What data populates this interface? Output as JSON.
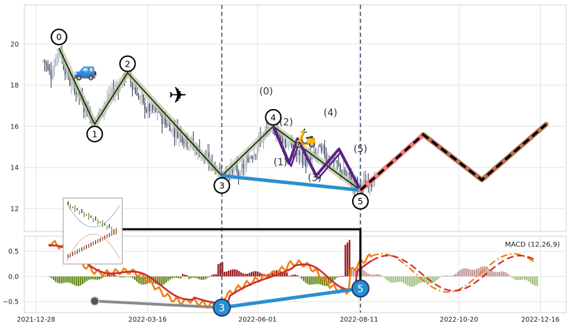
{
  "chart_data": [
    {
      "type": "candlestick",
      "panel": "price",
      "ylim": [
        10.9,
        21.9
      ],
      "yticks": [
        "12",
        "14",
        "16",
        "18",
        "20"
      ],
      "grid": true,
      "price_path": [
        [
          "2022-01-02",
          19.2
        ],
        [
          "2022-01-08",
          18.6
        ],
        [
          "2022-01-13",
          19.8
        ],
        [
          "2022-01-19",
          18.4
        ],
        [
          "2022-01-26",
          17.6
        ],
        [
          "2022-02-02",
          16.8
        ],
        [
          "2022-02-07",
          16.1
        ],
        [
          "2022-02-12",
          16.9
        ],
        [
          "2022-02-20",
          17.7
        ],
        [
          "2022-02-27",
          18.3
        ],
        [
          "2022-03-02",
          18.6
        ],
        [
          "2022-03-07",
          17.8
        ],
        [
          "2022-03-14",
          16.9
        ],
        [
          "2022-03-22",
          16.7
        ],
        [
          "2022-03-30",
          16.1
        ],
        [
          "2022-04-07",
          15.7
        ],
        [
          "2022-04-15",
          15.2
        ],
        [
          "2022-04-22",
          14.7
        ],
        [
          "2022-05-01",
          14.1
        ],
        [
          "2022-05-07",
          13.6
        ],
        [
          "2022-05-13",
          13.9
        ],
        [
          "2022-05-20",
          13.7
        ],
        [
          "2022-05-27",
          14.6
        ],
        [
          "2022-06-03",
          15.3
        ],
        [
          "2022-06-09",
          15.8
        ],
        [
          "2022-06-12",
          16.0
        ],
        [
          "2022-06-20",
          15.3
        ],
        [
          "2022-06-27",
          14.7
        ],
        [
          "2022-07-05",
          14.3
        ],
        [
          "2022-07-15",
          14.9
        ],
        [
          "2022-07-25",
          14.2
        ],
        [
          "2022-08-02",
          13.6
        ],
        [
          "2022-08-08",
          13.2
        ],
        [
          "2022-08-12",
          12.9
        ],
        [
          "2022-08-16",
          13.2
        ],
        [
          "2022-08-22",
          13.5
        ]
      ],
      "wave_labels": [
        {
          "label": "0",
          "x": "2022-01-13",
          "y": 19.8
        },
        {
          "label": "1",
          "x": "2022-02-07",
          "y": 16.1
        },
        {
          "label": "2",
          "x": "2022-03-02",
          "y": 18.6
        },
        {
          "label": "3",
          "x": "2022-05-07",
          "y": 13.6
        },
        {
          "label": "4",
          "x": "2022-06-12",
          "y": 16.0
        },
        {
          "label": "5",
          "x": "2022-08-12",
          "y": 12.9
        }
      ],
      "subwave_labels": [
        "(0)",
        "(1)",
        "(2)",
        "(3)",
        "(4)",
        "(5)"
      ],
      "projection": [
        [
          "2022-08-12",
          12.9
        ],
        [
          "2022-09-25",
          15.6
        ],
        [
          "2022-11-05",
          13.4
        ],
        [
          "2022-12-20",
          16.1
        ]
      ],
      "vertical_markers": [
        "2022-05-07",
        "2022-08-12"
      ]
    },
    {
      "type": "line",
      "panel": "indicator",
      "legend": "MACD (12,26,9)",
      "ylim": [
        -0.72,
        0.8
      ],
      "yticks": [
        "0.5",
        "0.0",
        "−0.5"
      ],
      "grid": true,
      "xticks": [
        "2021-12-28",
        "2022-03-16",
        "2022-06-01",
        "2022-08-11",
        "2022-10-20",
        "2022-12-16"
      ],
      "divergence_points": [
        {
          "label": "3",
          "x": "2022-05-07",
          "y": -0.62
        },
        {
          "label": "5",
          "x": "2022-08-12",
          "y": -0.24
        }
      ],
      "prior_low": {
        "x": "2022-02-07",
        "y": -0.49
      }
    }
  ],
  "decorations": [
    "car-emoji",
    "airplane-emoji",
    "scooter-emoji",
    "inset-thumbnail"
  ]
}
